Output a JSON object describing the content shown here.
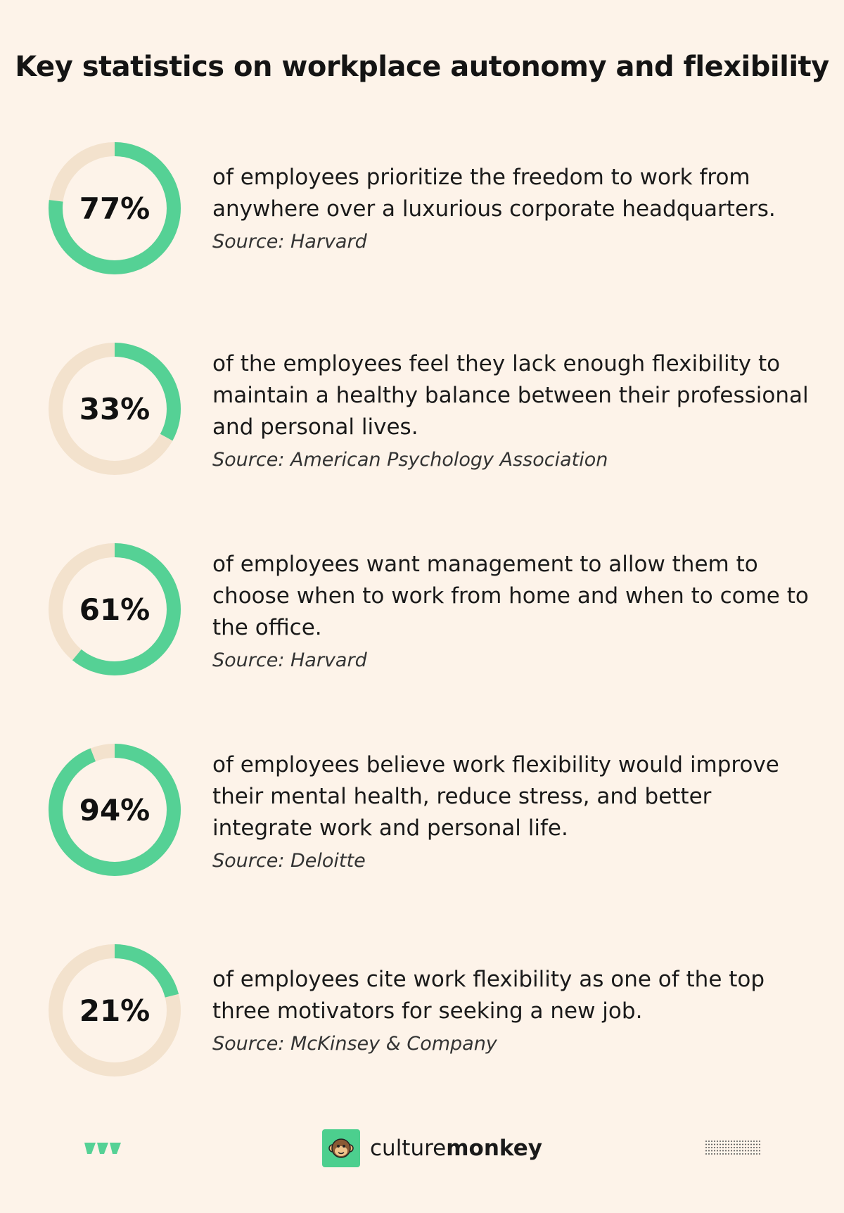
{
  "title": "Key statistics on workplace autonomy and flexibility",
  "colors": {
    "background": "#fdf3e9",
    "ring_fill": "#55d195",
    "ring_track": "#f3e2cd"
  },
  "chart_data": {
    "type": "donut-list",
    "stats": [
      {
        "value": 77,
        "label": "77%",
        "description": "of employees prioritize the freedom to work from anywhere over a luxurious corporate headquarters.",
        "source": "Source: Harvard"
      },
      {
        "value": 33,
        "label": "33%",
        "description": "of the employees feel they lack enough flexibility to maintain a healthy balance between their professional and personal lives.",
        "source": "Source: American Psychology Association"
      },
      {
        "value": 61,
        "label": "61%",
        "description": "of employees want management to allow them to choose when to work from home and when to come to the office.",
        "source": "Source: Harvard"
      },
      {
        "value": 94,
        "label": "94%",
        "description": "of employees believe work flexibility would improve their mental health, reduce stress, and better integrate work and personal life.",
        "source": "Source: Deloitte"
      },
      {
        "value": 21,
        "label": "21%",
        "description": "of employees cite work flexibility as one of the top three motivators for seeking a new job.",
        "source": "Source: McKinsey & Company"
      }
    ]
  },
  "footer": {
    "brand_light": "culture",
    "brand_bold": "monkey",
    "left_icon": "triple-chevron-logo-icon",
    "brand_icon": "monkey-face-icon",
    "right_icon": "dot-grid-icon"
  }
}
